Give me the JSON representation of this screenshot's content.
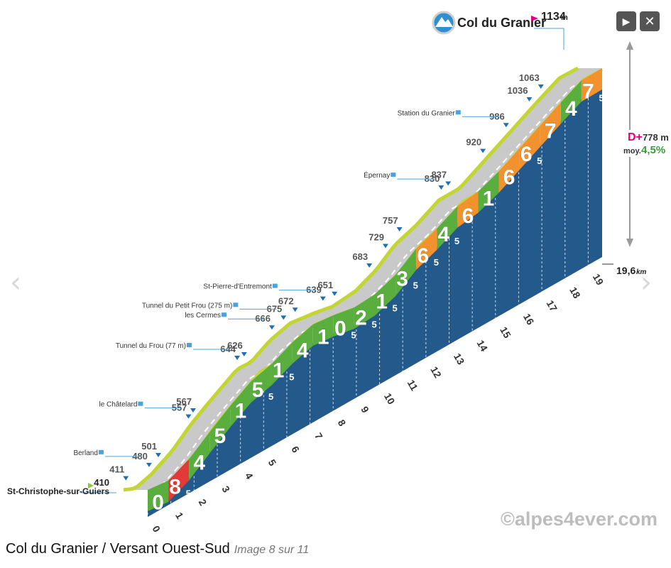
{
  "caption": {
    "title": "Col du Granier / Versant Ouest-Sud",
    "image_counter": "Image 8 sur 11"
  },
  "controls": {
    "play_icon": "▶",
    "close_icon": "✕",
    "prev_icon": "‹",
    "next_icon": "›"
  },
  "colors": {
    "profile_side": "#24598c",
    "road_top": "#c9c9c9",
    "road_edge": "#c3d530",
    "grade_easy": "#5aae3e",
    "grade_medium": "#f2922e",
    "grade_hard": "#e23a36",
    "accent": "#e2007a",
    "avg": "#3a9b3a"
  },
  "chart_data": {
    "type": "area",
    "title": "Col du Granier",
    "summit_altitude": "1134",
    "summit_unit": "m",
    "start_name": "St-Christophe-sur-Guiers",
    "start_altitude": "410",
    "distance_label": "19,6",
    "distance_unit": "km",
    "elevation_gain_prefix": "D+",
    "elevation_gain": "778 m",
    "average_prefix": "moy.",
    "average_grade": "4,5%",
    "watermark": "©alpes4ever.com",
    "km_labels": [
      "0",
      "1",
      "2",
      "3",
      "4",
      "5",
      "6",
      "7",
      "8",
      "9",
      "10",
      "11",
      "12",
      "13",
      "14",
      "15",
      "16",
      "17",
      "18",
      "19"
    ],
    "segments": [
      {
        "km": 0,
        "grade": "0",
        "color": "easy"
      },
      {
        "km": 1,
        "grade": "8,5",
        "color": "hard"
      },
      {
        "km": 2,
        "grade": "4",
        "color": "easy"
      },
      {
        "km": 3,
        "grade": "5",
        "color": "easy"
      },
      {
        "km": 4,
        "grade": "1",
        "color": "easy"
      },
      {
        "km": 5,
        "grade": "5,5",
        "color": "easy"
      },
      {
        "km": 6,
        "grade": "1,5",
        "color": "easy"
      },
      {
        "km": 7,
        "grade": "4",
        "color": "easy"
      },
      {
        "km": 8,
        "grade": "1",
        "color": "easy"
      },
      {
        "km": 9,
        "grade": "0,5",
        "color": "easy"
      },
      {
        "km": 10,
        "grade": "2,5",
        "color": "easy"
      },
      {
        "km": 11,
        "grade": "1,5",
        "color": "easy"
      },
      {
        "km": 12,
        "grade": "3,5",
        "color": "easy"
      },
      {
        "km": 13,
        "grade": "6,5",
        "color": "medium"
      },
      {
        "km": 14,
        "grade": "4,5",
        "color": "easy"
      },
      {
        "km": 15,
        "grade": "6",
        "color": "medium"
      },
      {
        "km": 16,
        "grade": "1",
        "color": "easy"
      },
      {
        "km": 17,
        "grade": "6",
        "color": "medium"
      },
      {
        "km": 18,
        "grade": "6,5",
        "color": "medium"
      },
      {
        "km": 19,
        "grade": "7",
        "color": "medium"
      },
      {
        "km": 20,
        "grade": "4",
        "color": "easy"
      },
      {
        "km": 21,
        "grade": "7,5",
        "color": "medium"
      }
    ],
    "altitudes": [
      {
        "km": 0.1,
        "alt": "411"
      },
      {
        "km": 1.1,
        "alt": "480"
      },
      {
        "km": 1.5,
        "alt": "501"
      },
      {
        "km": 2.8,
        "alt": "557"
      },
      {
        "km": 3.0,
        "alt": "567"
      },
      {
        "km": 4.9,
        "alt": "644"
      },
      {
        "km": 5.2,
        "alt": "626"
      },
      {
        "km": 6.4,
        "alt": "666"
      },
      {
        "km": 6.9,
        "alt": "675"
      },
      {
        "km": 7.4,
        "alt": "672"
      },
      {
        "km": 8.6,
        "alt": "639"
      },
      {
        "km": 9.1,
        "alt": "651"
      },
      {
        "km": 10.6,
        "alt": "683"
      },
      {
        "km": 11.3,
        "alt": "729"
      },
      {
        "km": 11.9,
        "alt": "757"
      },
      {
        "km": 13.7,
        "alt": "830"
      },
      {
        "km": 14.0,
        "alt": "837"
      },
      {
        "km": 15.5,
        "alt": "920"
      },
      {
        "km": 16.5,
        "alt": "986"
      },
      {
        "km": 17.5,
        "alt": "1036"
      },
      {
        "km": 18.0,
        "alt": "1063"
      }
    ],
    "places": [
      {
        "name": "Berland",
        "km": 1.1
      },
      {
        "name": "le Châtelard",
        "km": 2.8
      },
      {
        "name": "Tunnel du Frou (77 m)",
        "km": 4.9
      },
      {
        "name": "les Cermes",
        "km": 6.4
      },
      {
        "name": "Tunnel du Petit Frou (275 m)",
        "km": 6.9
      },
      {
        "name": "St-Pierre-d'Entremont",
        "km": 8.6
      },
      {
        "name": "Épernay",
        "km": 13.7
      },
      {
        "name": "Station du Granier",
        "km": 16.5
      }
    ]
  }
}
